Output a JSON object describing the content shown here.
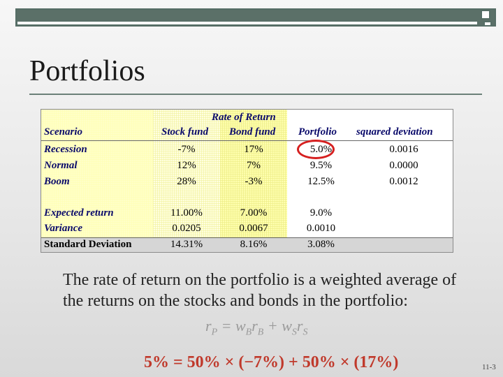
{
  "slide": {
    "title": "Portfolios",
    "page_number": "11-3"
  },
  "table": {
    "header_group": "Rate of Return",
    "headers": {
      "scenario": "Scenario",
      "stock": "Stock fund",
      "bond": "Bond fund",
      "portfolio": "Portfolio",
      "sqdev": "squared deviation"
    },
    "rows": [
      {
        "label": "Recession",
        "stock": "-7%",
        "bond": "17%",
        "portfolio": "5.0%",
        "sqdev": "0.0016"
      },
      {
        "label": "Normal",
        "stock": "12%",
        "bond": "7%",
        "portfolio": "9.5%",
        "sqdev": "0.0000"
      },
      {
        "label": "Boom",
        "stock": "28%",
        "bond": "-3%",
        "portfolio": "12.5%",
        "sqdev": "0.0012"
      }
    ],
    "summary": [
      {
        "label": "Expected return",
        "stock": "11.00%",
        "bond": "7.00%",
        "portfolio": "9.0%"
      },
      {
        "label": "Variance",
        "stock": "0.0205",
        "bond": "0.0067",
        "portfolio": "0.0010"
      },
      {
        "label": "Standard Deviation",
        "stock": "14.31%",
        "bond": "8.16%",
        "portfolio": "3.08%"
      }
    ],
    "highlight_color": "#d62020"
  },
  "body": {
    "text": "The rate of return on the portfolio is a weighted average of the returns on the stocks and bonds in the portfolio:",
    "formula_general": "rP = wBrB + wSrS",
    "formula_example": "5% = 50% × (−7%) + 50% × (17%)"
  }
}
